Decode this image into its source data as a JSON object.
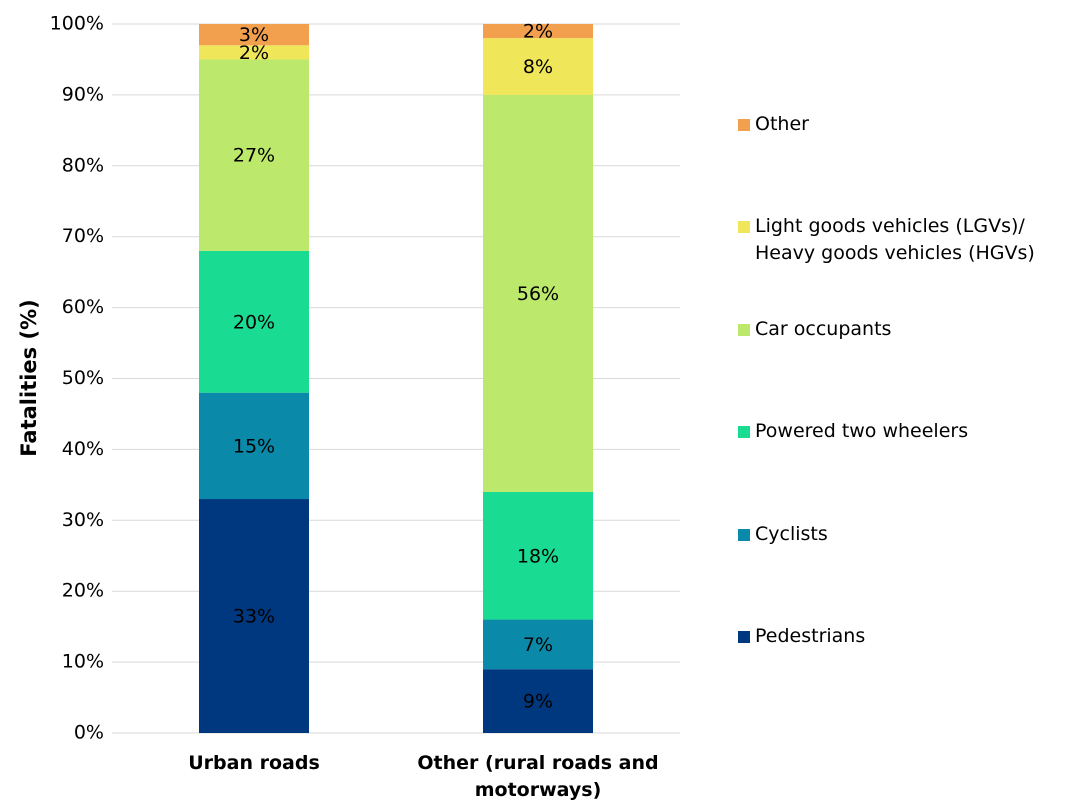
{
  "chart_data": {
    "type": "stacked_bar",
    "y_label": "Fatalities (%)",
    "categories": [
      "Urban roads",
      "Other (rural roads and motorways)"
    ],
    "series": [
      {
        "name": "Pedestrians",
        "color": "#00387f",
        "values": [
          33,
          9
        ],
        "value_labels": [
          "33%",
          "9%"
        ]
      },
      {
        "name": "Cyclists",
        "color": "#0a8aa8",
        "values": [
          15,
          7
        ],
        "value_labels": [
          "15%",
          "7%"
        ]
      },
      {
        "name": "Powered two wheelers",
        "color": "#19dc92",
        "values": [
          20,
          18
        ],
        "value_labels": [
          "20%",
          "18%"
        ]
      },
      {
        "name": "Car occupants",
        "color": "#bce96b",
        "values": [
          27,
          56
        ],
        "value_labels": [
          "27%",
          "56%"
        ]
      },
      {
        "name": "Light goods vehicles (LGVs)/ Heavy goods vehicles (HGVs)",
        "color": "#f0e65a",
        "values": [
          2,
          8
        ],
        "value_labels": [
          "2%",
          "8%"
        ]
      },
      {
        "name": "Other",
        "color": "#f2a04e",
        "values": [
          3,
          2
        ],
        "value_labels": [
          "3%",
          "2%"
        ]
      }
    ],
    "ylim": [
      0,
      100
    ],
    "yticks": [
      {
        "value": 0,
        "label": "0%"
      },
      {
        "value": 10,
        "label": "10%"
      },
      {
        "value": 20,
        "label": "20%"
      },
      {
        "value": 30,
        "label": "30%"
      },
      {
        "value": 40,
        "label": "40%"
      },
      {
        "value": 50,
        "label": "50%"
      },
      {
        "value": 60,
        "label": "60%"
      },
      {
        "value": 70,
        "label": "70%"
      },
      {
        "value": 80,
        "label": "80%"
      },
      {
        "value": 90,
        "label": "90%"
      },
      {
        "value": 100,
        "label": "100%"
      }
    ],
    "grid": true,
    "legend": "right"
  }
}
